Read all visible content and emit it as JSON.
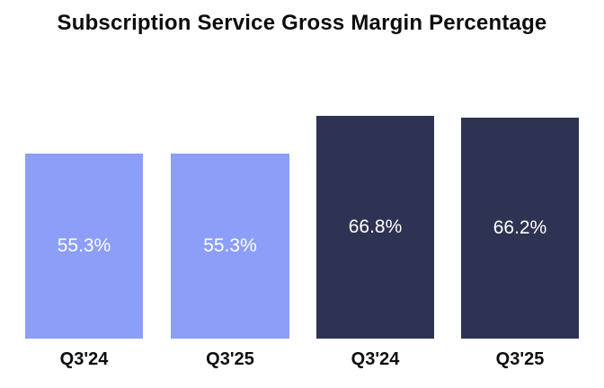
{
  "chart_data": {
    "type": "bar",
    "title": "Subscription Service Gross Margin Percentage",
    "xlabel": "",
    "ylabel": "",
    "ylim": [
      0,
      70
    ],
    "grid": false,
    "axes_visible": false,
    "legend": "none",
    "value_label_color": "#ffffff",
    "title_color": "#0d0d0d",
    "background_color": "#ffffff",
    "categories": [
      "Q3'24",
      "Q3'25",
      "Q3'24",
      "Q3'25"
    ],
    "values": [
      55.3,
      55.3,
      66.8,
      66.2
    ],
    "bars": [
      {
        "label": "Q3'24",
        "value": 55.3,
        "display": "55.3%",
        "color": "#8C9EF8"
      },
      {
        "label": "Q3'25",
        "value": 55.3,
        "display": "55.3%",
        "color": "#8C9EF8"
      },
      {
        "label": "Q3'24",
        "value": 66.8,
        "display": "66.8%",
        "color": "#2E3353"
      },
      {
        "label": "Q3'25",
        "value": 66.2,
        "display": "66.2%",
        "color": "#2E3353"
      }
    ]
  }
}
